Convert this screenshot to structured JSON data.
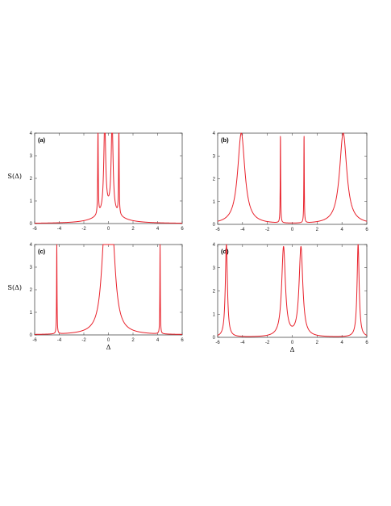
{
  "figure": {
    "ylabel": "S(Δ)",
    "xlabel": "Δ"
  },
  "chart_data": [
    {
      "type": "line",
      "panel_label": "(a)",
      "x_ticks": [
        -6,
        -4,
        -2,
        0,
        2,
        4,
        6
      ],
      "y_ticks": [
        0,
        1,
        2,
        3,
        4
      ],
      "xlim": [
        -6,
        6
      ],
      "ylim": [
        0,
        4
      ],
      "ylabel": "S(Δ)",
      "xlabel": "",
      "peaks": [
        {
          "x": -0.85,
          "height": 4.0,
          "width": 0.025
        },
        {
          "x": -0.3,
          "height": 4.0,
          "width": 0.09
        },
        {
          "x": 0.3,
          "height": 4.0,
          "width": 0.09
        },
        {
          "x": 0.85,
          "height": 4.0,
          "width": 0.025
        }
      ],
      "background": {
        "amplitude": 0.55,
        "width": 1.0
      }
    },
    {
      "type": "line",
      "panel_label": "(b)",
      "x_ticks": [
        -6,
        -4,
        -2,
        0,
        2,
        4,
        6
      ],
      "y_ticks": [
        0,
        1,
        2,
        3,
        4
      ],
      "xlim": [
        -6,
        6
      ],
      "ylim": [
        0,
        4
      ],
      "ylabel": "",
      "xlabel": "",
      "peaks": [
        {
          "x": -4.1,
          "height": 4.0,
          "width": 0.35
        },
        {
          "x": -0.95,
          "height": 3.85,
          "width": 0.02
        },
        {
          "x": 0.95,
          "height": 3.85,
          "width": 0.02
        },
        {
          "x": 4.1,
          "height": 4.0,
          "width": 0.35
        }
      ],
      "background": {
        "amplitude": 0.0,
        "width": 1.0
      }
    },
    {
      "type": "line",
      "panel_label": "(c)",
      "x_ticks": [
        -6,
        -4,
        -2,
        0,
        2,
        4,
        6
      ],
      "y_ticks": [
        0,
        1,
        2,
        3,
        4
      ],
      "xlim": [
        -6,
        6
      ],
      "ylim": [
        0,
        4
      ],
      "ylabel": "S(Δ)",
      "xlabel": "Δ",
      "peaks": [
        {
          "x": -4.2,
          "height": 3.95,
          "width": 0.02
        },
        {
          "x": -0.3,
          "height": 4.0,
          "width": 0.32
        },
        {
          "x": 0.3,
          "height": 4.0,
          "width": 0.32
        },
        {
          "x": 4.2,
          "height": 3.95,
          "width": 0.02
        }
      ],
      "background": {
        "amplitude": 0.0,
        "width": 1.0
      }
    },
    {
      "type": "line",
      "panel_label": "(d)",
      "x_ticks": [
        -6,
        -4,
        -2,
        0,
        2,
        4,
        6
      ],
      "y_ticks": [
        0,
        1,
        2,
        3,
        4
      ],
      "xlim": [
        -6,
        6
      ],
      "ylim": [
        0,
        4
      ],
      "ylabel": "",
      "xlabel": "Δ",
      "peaks": [
        {
          "x": -5.3,
          "height": 4.0,
          "width": 0.1
        },
        {
          "x": -0.7,
          "height": 3.85,
          "width": 0.18
        },
        {
          "x": 0.7,
          "height": 3.85,
          "width": 0.18
        },
        {
          "x": 5.3,
          "height": 4.0,
          "width": 0.1
        }
      ],
      "background": {
        "amplitude": 0.0,
        "width": 1.0
      }
    }
  ],
  "colors": {
    "curve": "#e8202a",
    "frame": "#333333"
  }
}
